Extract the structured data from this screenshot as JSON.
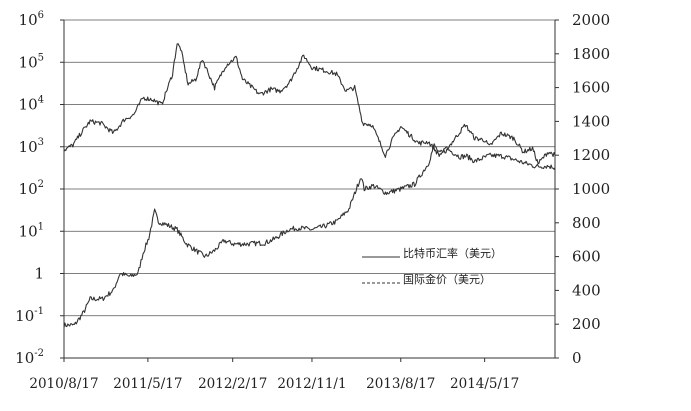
{
  "chart_data": {
    "type": "line",
    "title": "",
    "xlabel": "",
    "ylabel_left": "",
    "ylabel_right": "",
    "grid": true,
    "legend_placement": "lower-right",
    "x_ticks": [
      "2010/8/17",
      "2011/5/17",
      "2012/2/17",
      "2012/11/1",
      "2013/8/17",
      "2014/5/17"
    ],
    "x_range": [
      "2010/8/17",
      "2015/1/1"
    ],
    "y_left": {
      "scale": "log",
      "range": [
        0.01,
        1000000
      ],
      "ticks": [
        {
          "value": 0.01,
          "base": "10",
          "exp": "-2"
        },
        {
          "value": 0.1,
          "base": "10",
          "exp": "-1"
        },
        {
          "value": 1,
          "base": "1",
          "exp": ""
        },
        {
          "value": 10,
          "base": "10",
          "exp": "1"
        },
        {
          "value": 100,
          "base": "10",
          "exp": "2"
        },
        {
          "value": 1000,
          "base": "10",
          "exp": "3"
        },
        {
          "value": 10000,
          "base": "10",
          "exp": "4"
        },
        {
          "value": 100000,
          "base": "10",
          "exp": "5"
        },
        {
          "value": 1000000,
          "base": "10",
          "exp": "6"
        }
      ]
    },
    "y_right": {
      "scale": "linear",
      "range": [
        0,
        2000
      ],
      "ticks": [
        "0",
        "200",
        "400",
        "600",
        "800",
        "1000",
        "1200",
        "1400",
        "1600",
        "1800",
        "2000"
      ]
    },
    "series": [
      {
        "name": "比特币汇率（美元）",
        "axis": "left",
        "style": "solid",
        "color": "#333333",
        "points": [
          [
            "2010/8/17",
            0.06
          ],
          [
            "2010/9/20",
            0.06
          ],
          [
            "2010/10/20",
            0.12
          ],
          [
            "2010/11/10",
            0.25
          ],
          [
            "2010/12/20",
            0.25
          ],
          [
            "2011/1/25",
            0.4
          ],
          [
            "2011/2/15",
            1.0
          ],
          [
            "2011/3/20",
            0.85
          ],
          [
            "2011/4/15",
            1.0
          ],
          [
            "2011/5/1",
            3.0
          ],
          [
            "2011/5/20",
            7.0
          ],
          [
            "2011/6/8",
            30
          ],
          [
            "2011/6/20",
            17
          ],
          [
            "2011/7/20",
            14
          ],
          [
            "2011/8/20",
            11
          ],
          [
            "2011/9/20",
            5.0
          ],
          [
            "2011/10/20",
            3.5
          ],
          [
            "2011/11/20",
            2.5
          ],
          [
            "2011/12/20",
            3.5
          ],
          [
            "2012/1/20",
            6.0
          ],
          [
            "2012/2/20",
            5.0
          ],
          [
            "2012/4/1",
            5.0
          ],
          [
            "2012/6/1",
            5.3
          ],
          [
            "2012/7/1",
            6.5
          ],
          [
            "2012/8/17",
            11
          ],
          [
            "2012/9/20",
            12
          ],
          [
            "2012/11/1",
            11
          ],
          [
            "2012/12/10",
            13
          ],
          [
            "2013/1/20",
            17
          ],
          [
            "2013/3/1",
            33
          ],
          [
            "2013/4/10",
            200
          ],
          [
            "2013/4/20",
            100
          ],
          [
            "2013/5/20",
            120
          ],
          [
            "2013/7/1",
            80
          ],
          [
            "2013/8/17",
            100
          ],
          [
            "2013/10/1",
            130
          ],
          [
            "2013/11/15",
            400
          ],
          [
            "2013/12/4",
            1100
          ],
          [
            "2013/12/20",
            700
          ],
          [
            "2014/1/20",
            850
          ],
          [
            "2014/2/25",
            580
          ],
          [
            "2014/3/20",
            600
          ],
          [
            "2014/4/15",
            450
          ],
          [
            "2014/6/1",
            620
          ],
          [
            "2014/7/15",
            600
          ],
          [
            "2014/8/20",
            500
          ],
          [
            "2014/9/20",
            420
          ],
          [
            "2014/11/1",
            340
          ],
          [
            "2014/12/10",
            350
          ],
          [
            "2015/1/1",
            320
          ]
        ]
      },
      {
        "name": "国际金价（美元）",
        "axis": "right",
        "style": "dashed",
        "color": "#333333",
        "points": [
          [
            "2010/8/17",
            1230
          ],
          [
            "2010/9/15",
            1260
          ],
          [
            "2010/10/15",
            1340
          ],
          [
            "2010/11/10",
            1400
          ],
          [
            "2010/12/15",
            1390
          ],
          [
            "2011/1/25",
            1330
          ],
          [
            "2011/3/1",
            1410
          ],
          [
            "2011/4/1",
            1440
          ],
          [
            "2011/5/1",
            1540
          ],
          [
            "2011/6/1",
            1530
          ],
          [
            "2011/7/1",
            1500
          ],
          [
            "2011/8/5",
            1680
          ],
          [
            "2011/8/20",
            1860
          ],
          [
            "2011/9/1",
            1830
          ],
          [
            "2011/9/25",
            1620
          ],
          [
            "2011/10/20",
            1650
          ],
          [
            "2011/11/10",
            1770
          ],
          [
            "2011/12/20",
            1600
          ],
          [
            "2012/1/25",
            1730
          ],
          [
            "2012/2/28",
            1780
          ],
          [
            "2012/3/20",
            1650
          ],
          [
            "2012/5/15",
            1560
          ],
          [
            "2012/6/20",
            1590
          ],
          [
            "2012/7/20",
            1580
          ],
          [
            "2012/8/20",
            1630
          ],
          [
            "2012/10/5",
            1790
          ],
          [
            "2012/11/1",
            1720
          ],
          [
            "2012/12/15",
            1700
          ],
          [
            "2013/1/20",
            1680
          ],
          [
            "2013/2/20",
            1580
          ],
          [
            "2013/3/20",
            1600
          ],
          [
            "2013/4/15",
            1390
          ],
          [
            "2013/5/15",
            1380
          ],
          [
            "2013/6/28",
            1200
          ],
          [
            "2013/7/20",
            1290
          ],
          [
            "2013/8/17",
            1370
          ],
          [
            "2013/9/15",
            1320
          ],
          [
            "2013/10/15",
            1270
          ],
          [
            "2013/11/15",
            1280
          ],
          [
            "2013/12/20",
            1200
          ],
          [
            "2014/1/20",
            1250
          ],
          [
            "2014/3/15",
            1380
          ],
          [
            "2014/4/15",
            1300
          ],
          [
            "2014/5/17",
            1290
          ],
          [
            "2014/6/1",
            1250
          ],
          [
            "2014/7/10",
            1330
          ],
          [
            "2014/8/20",
            1300
          ],
          [
            "2014/9/20",
            1220
          ],
          [
            "2014/10/20",
            1240
          ],
          [
            "2014/11/7",
            1150
          ],
          [
            "2014/12/10",
            1220
          ],
          [
            "2015/1/1",
            1200
          ]
        ]
      }
    ]
  }
}
